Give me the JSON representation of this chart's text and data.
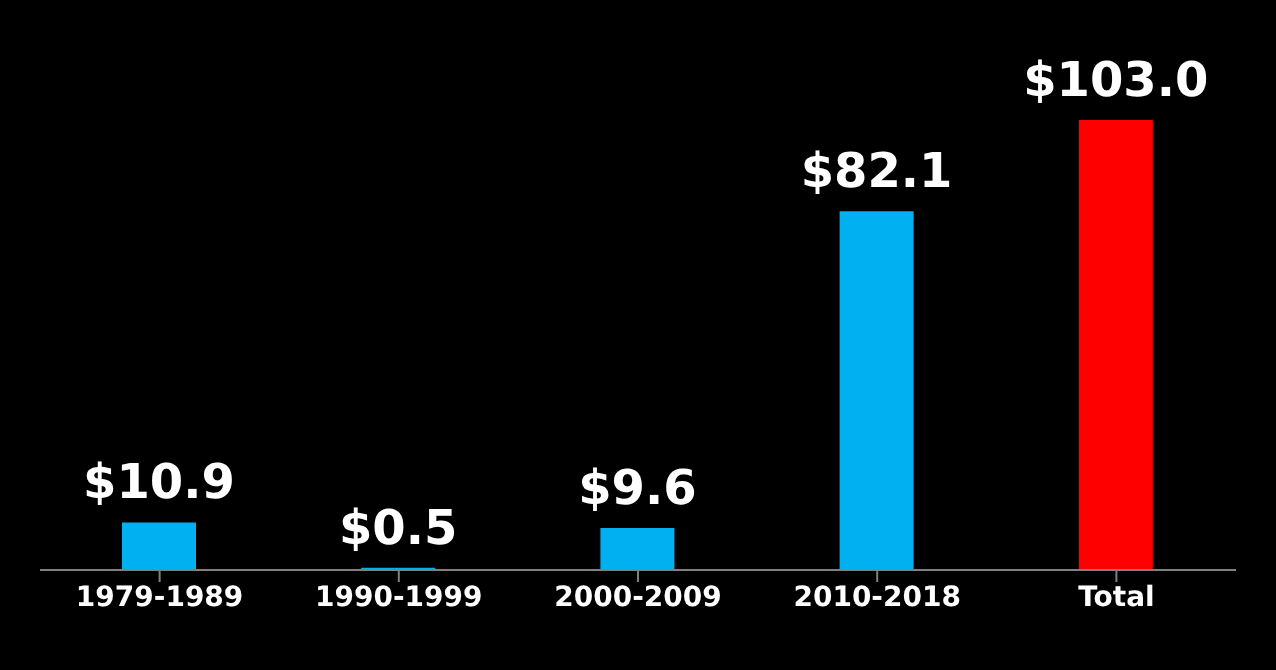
{
  "chart_data": {
    "type": "bar",
    "categories": [
      "1979-1989",
      "1990-1999",
      "2000-2009",
      "2010-2018",
      "Total"
    ],
    "values": [
      10.9,
      0.5,
      9.6,
      82.1,
      103.0
    ],
    "colors": [
      "#00b0f0",
      "#00b0f0",
      "#00b0f0",
      "#00b0f0",
      "#ff0000"
    ],
    "value_labels": [
      "$10.9",
      "$0.5",
      "$9.6",
      "$82.1",
      "$103.0"
    ]
  }
}
